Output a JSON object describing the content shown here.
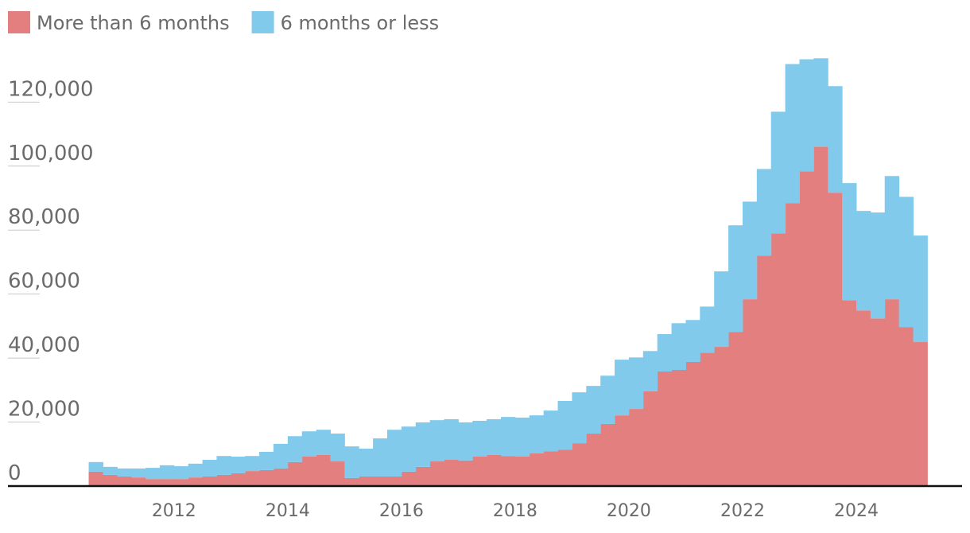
{
  "chart_data": {
    "type": "stacked-step-area",
    "x": [
      2010.5,
      2010.75,
      2011,
      2011.25,
      2011.5,
      2011.75,
      2012,
      2012.25,
      2012.5,
      2012.75,
      2013,
      2013.25,
      2013.5,
      2013.75,
      2014,
      2014.25,
      2014.5,
      2014.75,
      2015,
      2015.25,
      2015.5,
      2015.75,
      2016,
      2016.25,
      2016.5,
      2016.75,
      2017,
      2017.25,
      2017.5,
      2017.75,
      2018,
      2018.25,
      2018.5,
      2018.75,
      2019,
      2019.25,
      2019.5,
      2019.75,
      2020,
      2020.25,
      2020.5,
      2020.75,
      2021,
      2021.25,
      2021.5,
      2021.75,
      2022,
      2022.25,
      2022.5,
      2022.75,
      2023,
      2023.25,
      2023.5,
      2023.75,
      2024,
      2024.25,
      2024.5,
      2024.75,
      2025
    ],
    "series": [
      {
        "name": "More than 6 months",
        "color": "#e37f7e",
        "values": [
          4500,
          3500,
          3000,
          2700,
          2200,
          2200,
          2200,
          2700,
          3000,
          3500,
          4000,
          4700,
          5000,
          5500,
          7500,
          9200,
          9700,
          7700,
          2500,
          3000,
          3000,
          3000,
          4500,
          6000,
          7700,
          8200,
          8000,
          9200,
          9700,
          9400,
          9200,
          10200,
          10900,
          11400,
          13400,
          16400,
          19400,
          22100,
          24100,
          29600,
          35800,
          36300,
          38800,
          41700,
          43500,
          48200,
          58400,
          72000,
          79000,
          88400,
          98400,
          106100,
          91700,
          58100,
          54900,
          52400,
          58400,
          49700,
          45000
        ]
      },
      {
        "name": "6 months or less",
        "color": "#82caec",
        "values": [
          3000,
          2500,
          2500,
          2800,
          3500,
          4300,
          4000,
          4300,
          5200,
          5900,
          5200,
          4700,
          5700,
          7700,
          8100,
          7900,
          7900,
          8700,
          9900,
          8700,
          11900,
          14600,
          14100,
          13900,
          12900,
          12700,
          11900,
          11200,
          11200,
          12200,
          12200,
          11900,
          12700,
          15200,
          15900,
          14900,
          15100,
          17400,
          16100,
          12600,
          11700,
          14600,
          13100,
          14400,
          23600,
          33300,
          30500,
          27100,
          38000,
          43500,
          35000,
          27600,
          33300,
          36600,
          31100,
          33100,
          38500,
          40700,
          33300
        ]
      }
    ],
    "xlim": [
      2009.08,
      2025.86
    ],
    "xticks": [
      2012,
      2014,
      2016,
      2018,
      2020,
      2022,
      2024
    ],
    "ylim": [
      0,
      137000
    ],
    "yticks": [
      0,
      {
        "value": 20000,
        "label": "20,000"
      },
      {
        "value": 40000,
        "label": "40,000"
      },
      {
        "value": 60000,
        "label": "60,000"
      },
      {
        "value": 80000,
        "label": "80,000"
      },
      {
        "value": 100000,
        "label": "100,000"
      },
      {
        "value": 120000,
        "label": "120,000"
      }
    ]
  }
}
